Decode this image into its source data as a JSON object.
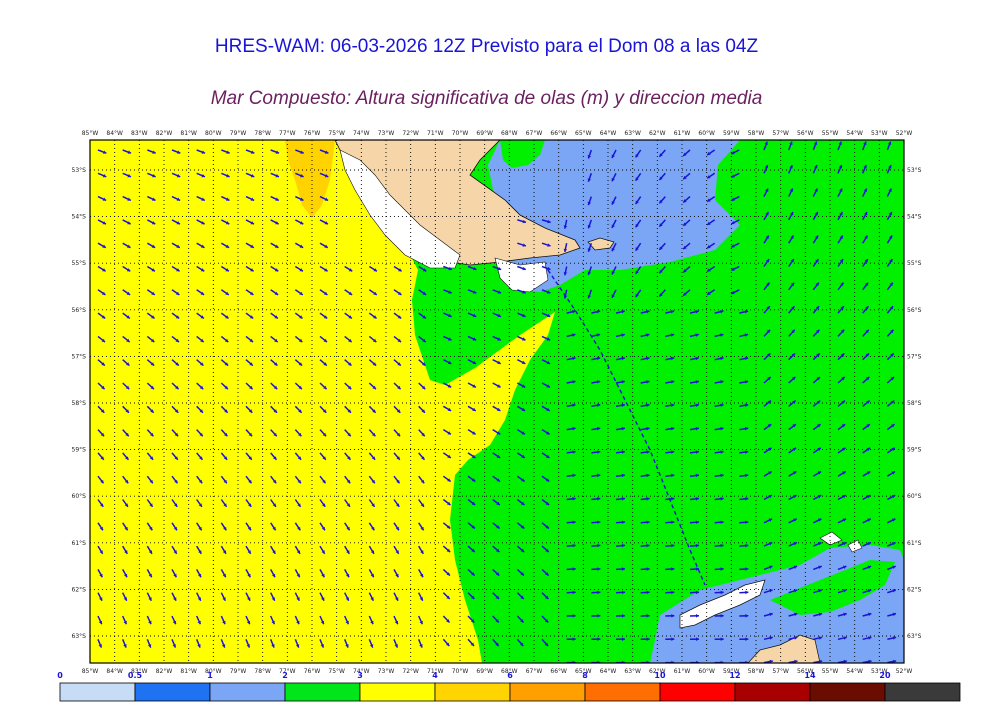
{
  "title": "HRES-WAM: 06-03-2026 12Z Previsto para el Dom 08 a las 04Z",
  "subtitle": "Mar Compuesto: Altura significativa de olas (m) y direccion media",
  "lon_labels": [
    "85°W",
    "84°W",
    "83°W",
    "82°W",
    "81°W",
    "80°W",
    "79°W",
    "78°W",
    "77°W",
    "76°W",
    "75°W",
    "74°W",
    "73°W",
    "72°W",
    "71°W",
    "70°W",
    "69°W",
    "68°W",
    "67°W",
    "66°W",
    "65°W",
    "64°W",
    "63°W",
    "62°W",
    "61°W",
    "60°W",
    "59°W",
    "58°W",
    "57°W",
    "56°W",
    "55°W",
    "54°W",
    "53°W",
    "52°W"
  ],
  "lat_labels": [
    "53°S",
    "54°S",
    "55°S",
    "56°S",
    "57°S",
    "58°S",
    "59°S",
    "60°S",
    "61°S",
    "62°S",
    "63°S"
  ],
  "legend": {
    "levels": [
      "0",
      "0.5",
      "1",
      "2",
      "3",
      "4",
      "6",
      "8",
      "10",
      "12",
      "14",
      "20"
    ],
    "colors": [
      "#c6dcf7",
      "#1f72f2",
      "#7aa6f5",
      "#00e61a",
      "#ffff00",
      "#ffd400",
      "#ff9f00",
      "#ff6e00",
      "#ff0000",
      "#a80000",
      "#6b0c00",
      "#3a3a3a"
    ]
  },
  "map_colors": {
    "land": "#f6d5a8",
    "ice": "#ffffff",
    "sea_2_3": "#00f000",
    "sea_3_4": "#ffff00",
    "sea_4_6": "#ffd200",
    "sea_1_2": "#7aa6f5",
    "arrow": "#1a14d6"
  }
}
